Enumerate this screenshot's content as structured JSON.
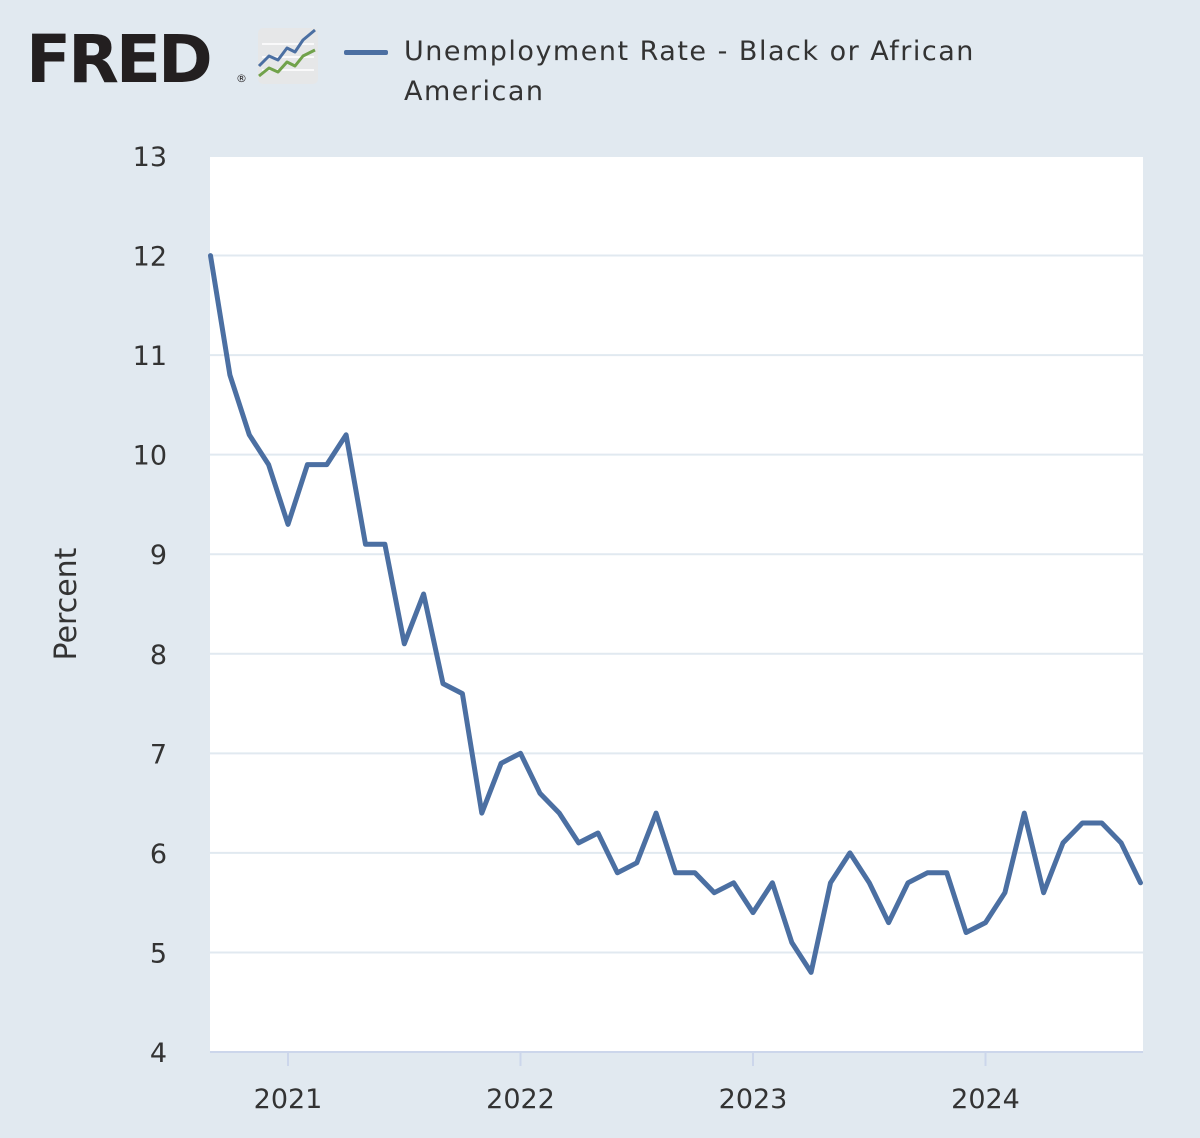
{
  "brand": {
    "name": "FRED",
    "logo_icon": "fred-trend-graph-icon"
  },
  "colors": {
    "background": "#e1e9f0",
    "plot_background": "#ffffff",
    "series_line": "#4b6fa2",
    "grid": "#e1e9f0",
    "axis_text": "#333333",
    "logo_text": "#231f20"
  },
  "chart_data": {
    "type": "line",
    "title": "",
    "xlabel": "",
    "ylabel": "Percent",
    "ylim": [
      4,
      13
    ],
    "yticks": [
      4,
      5,
      6,
      7,
      8,
      9,
      10,
      11,
      12,
      13
    ],
    "xtick_labels": [
      "2021",
      "2022",
      "2023",
      "2024"
    ],
    "grid": true,
    "legend_position": "top",
    "series": [
      {
        "name": "Unemployment Rate - Black or African American",
        "color": "#4b6fa2",
        "x": [
          "2020-09",
          "2020-10",
          "2020-11",
          "2020-12",
          "2021-01",
          "2021-02",
          "2021-03",
          "2021-04",
          "2021-05",
          "2021-06",
          "2021-07",
          "2021-08",
          "2021-09",
          "2021-10",
          "2021-11",
          "2021-12",
          "2022-01",
          "2022-02",
          "2022-03",
          "2022-04",
          "2022-05",
          "2022-06",
          "2022-07",
          "2022-08",
          "2022-09",
          "2022-10",
          "2022-11",
          "2022-12",
          "2023-01",
          "2023-02",
          "2023-03",
          "2023-04",
          "2023-05",
          "2023-06",
          "2023-07",
          "2023-08",
          "2023-09",
          "2023-10",
          "2023-11",
          "2023-12",
          "2024-01",
          "2024-02",
          "2024-03",
          "2024-04",
          "2024-05",
          "2024-06",
          "2024-07",
          "2024-08",
          "2024-09"
        ],
        "values": [
          12.0,
          10.8,
          10.2,
          9.9,
          9.3,
          9.9,
          9.9,
          10.2,
          9.1,
          9.1,
          8.1,
          8.6,
          7.7,
          7.6,
          6.4,
          6.9,
          7.0,
          6.6,
          6.4,
          6.1,
          6.2,
          5.8,
          5.9,
          6.4,
          5.8,
          5.8,
          5.6,
          5.7,
          5.4,
          5.7,
          5.1,
          4.8,
          5.7,
          6.0,
          5.7,
          5.3,
          5.7,
          5.8,
          5.8,
          5.2,
          5.3,
          5.6,
          6.4,
          5.6,
          6.1,
          6.3,
          6.3,
          6.1,
          5.7
        ]
      }
    ]
  }
}
